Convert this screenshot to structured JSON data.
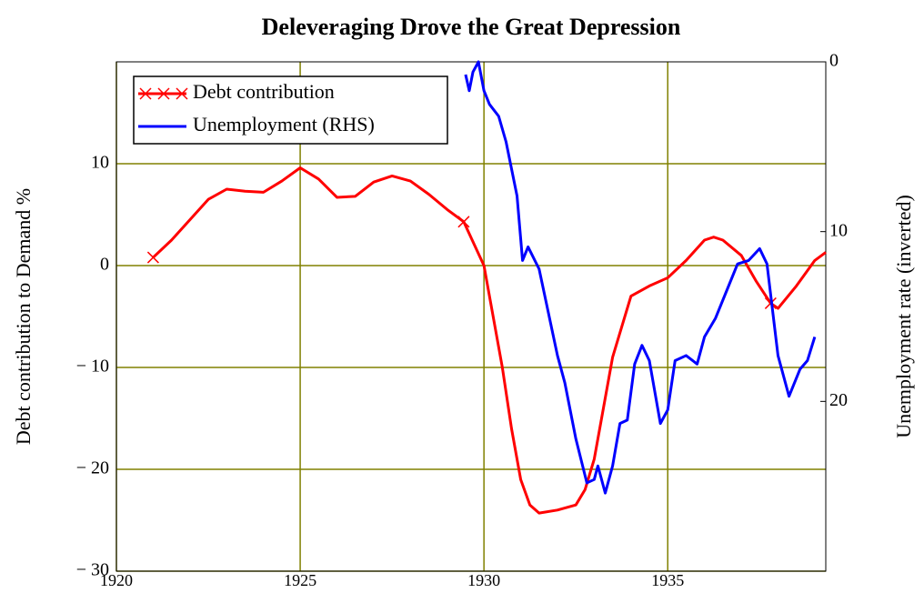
{
  "chart_data": {
    "type": "line",
    "title": "Deleveraging Drove the Great Depression",
    "y_label": "Debt contribution to Demand %",
    "y2_label": "Unemployment rate (inverted)",
    "xlim": [
      1920,
      1939.3
    ],
    "xticks": [
      1920,
      1925,
      1930,
      1935
    ],
    "ylim": [
      -30,
      20
    ],
    "yticks": [
      {
        "value": -30,
        "label": "− 30"
      },
      {
        "value": -20,
        "label": "− 20"
      },
      {
        "value": -10,
        "label": "− 10"
      },
      0,
      10
    ],
    "y2lim": [
      30,
      0
    ],
    "y2ticks": [
      0,
      10,
      20
    ],
    "grid": true,
    "grid_color": "#808000",
    "legend": "upper left",
    "series": [
      {
        "name": "Debt contribution",
        "color": "#ff0000",
        "marker": "x",
        "x": [
          1921,
          1921.5,
          1922,
          1922.5,
          1923,
          1923.5,
          1924,
          1924.5,
          1925,
          1925.5,
          1926,
          1926.5,
          1927,
          1927.5,
          1928,
          1928.5,
          1929,
          1929.45,
          1930,
          1930.25,
          1930.5,
          1930.75,
          1931,
          1931.25,
          1931.5,
          1932,
          1932.5,
          1932.75,
          1933,
          1933.25,
          1933.5,
          1934,
          1934.5,
          1935,
          1935.5,
          1936,
          1936.25,
          1936.5,
          1937,
          1937.4,
          1937.8,
          1938,
          1938.5,
          1939,
          1939.3
        ],
        "values": [
          0.8,
          2.5,
          4.5,
          6.5,
          7.5,
          7.3,
          7.2,
          8.3,
          9.6,
          8.5,
          6.7,
          6.8,
          8.2,
          8.8,
          8.3,
          7,
          5.5,
          4.3,
          0,
          -5,
          -10,
          -16,
          -21,
          -23.5,
          -24.3,
          -24,
          -23.5,
          -22,
          -19,
          -14,
          -9,
          -3,
          -2,
          -1.2,
          0.5,
          2.5,
          2.8,
          2.5,
          1,
          -1.5,
          -3.7,
          -4.2,
          -2,
          0.5,
          1.3
        ]
      },
      {
        "name": "Unemployment (RHS)",
        "color": "#0000ff",
        "axis": "y2",
        "x": [
          1929.5,
          1929.6,
          1929.7,
          1929.85,
          1930,
          1930.15,
          1930.4,
          1930.6,
          1930.9,
          1931.05,
          1931.2,
          1931.5,
          1932,
          1932.2,
          1932.5,
          1932.8,
          1933,
          1933.1,
          1933.3,
          1933.5,
          1933.7,
          1933.9,
          1934.1,
          1934.3,
          1934.5,
          1934.8,
          1935,
          1935.2,
          1935.5,
          1935.8,
          1936,
          1936.3,
          1936.6,
          1936.9,
          1937.2,
          1937.5,
          1937.7,
          1938,
          1938.3,
          1938.6,
          1938.8,
          1939
        ],
        "values": [
          0.75,
          1.7,
          0.6,
          0,
          1.7,
          2.5,
          3.2,
          4.7,
          7.9,
          11.7,
          10.9,
          12.2,
          17.3,
          18.9,
          22.2,
          24.8,
          24.6,
          23.8,
          25.4,
          23.8,
          21.3,
          21.1,
          17.8,
          16.7,
          17.6,
          21.3,
          20.5,
          17.6,
          17.3,
          17.8,
          16.2,
          15.1,
          13.5,
          11.9,
          11.7,
          11,
          11.9,
          17.3,
          19.7,
          18.1,
          17.6,
          16.2
        ]
      }
    ]
  }
}
